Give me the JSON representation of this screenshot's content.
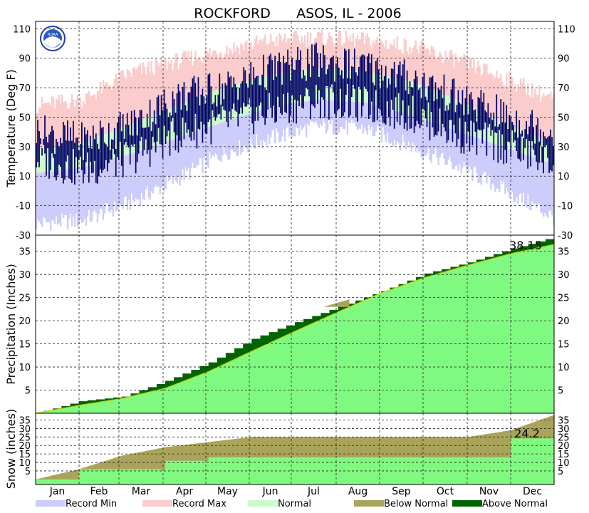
{
  "title": "ROCKFORD      ASOS, IL - 2006",
  "colors": {
    "record_min": "#cccdfb",
    "record_max": "#fbcccc",
    "normal": "#ccfacb",
    "observed": "#000066",
    "precip_normal_fill": "#80f980",
    "above_normal": "#006400",
    "below_normal": "#aaa45a",
    "normal_line": "#c8c800"
  },
  "months": [
    "Jan",
    "Feb",
    "Mar",
    "Apr",
    "May",
    "Jun",
    "Jul",
    "Aug",
    "Sep",
    "Oct",
    "Nov",
    "Dec"
  ],
  "legend": [
    {
      "label": "Record Min",
      "color": "#cccdfb"
    },
    {
      "label": "Record Max",
      "color": "#fbcccc"
    },
    {
      "label": "Normal",
      "color": "#ccfacb"
    },
    {
      "label": "Below Normal",
      "color": "#aaa45a"
    },
    {
      "label": "Above Normal",
      "color": "#006400"
    }
  ],
  "chart_data": [
    {
      "type": "area",
      "name": "temperature",
      "ylabel": "Temperature (Deg F)",
      "ylim": [
        -30,
        115
      ],
      "yticks": [
        -30,
        -10,
        10,
        30,
        50,
        70,
        90,
        110
      ],
      "grid": true,
      "x": [
        "Jan",
        "Feb",
        "Mar",
        "Apr",
        "May",
        "Jun",
        "Jul",
        "Aug",
        "Sep",
        "Oct",
        "Nov",
        "Dec"
      ],
      "series": [
        {
          "name": "Record Min",
          "values": [
            -22,
            -20,
            -8,
            8,
            26,
            36,
            44,
            42,
            30,
            16,
            0,
            -18
          ]
        },
        {
          "name": "Record Max",
          "values": [
            58,
            62,
            80,
            88,
            96,
            102,
            104,
            102,
            98,
            88,
            76,
            62
          ]
        },
        {
          "name": "Normal Low",
          "values": [
            12,
            16,
            25,
            36,
            47,
            57,
            62,
            60,
            51,
            40,
            29,
            18
          ]
        },
        {
          "name": "Normal High",
          "values": [
            28,
            33,
            45,
            58,
            70,
            79,
            83,
            81,
            74,
            61,
            45,
            32
          ]
        },
        {
          "name": "Observed Low",
          "values": [
            22,
            14,
            22,
            38,
            46,
            54,
            62,
            58,
            52,
            38,
            30,
            18
          ]
        },
        {
          "name": "Observed High",
          "values": [
            40,
            34,
            44,
            64,
            70,
            82,
            88,
            84,
            76,
            62,
            50,
            40
          ]
        }
      ]
    },
    {
      "type": "area",
      "name": "precipitation",
      "ylabel": "Precipitation (Inches)",
      "ylim": [
        0,
        38.5
      ],
      "yticks": [
        5,
        10,
        15,
        20,
        25,
        30,
        35
      ],
      "grid": true,
      "annotation": "38.15",
      "x": [
        "Jan 1",
        "Feb 1",
        "Mar 1",
        "Apr 1",
        "May 1",
        "Jun 1",
        "Jul 1",
        "Aug 1",
        "Sep 1",
        "Oct 1",
        "Nov 1",
        "Dec 1",
        "Dec 31"
      ],
      "series": [
        {
          "name": "Normal",
          "values": [
            0,
            1.7,
            3.2,
            5.4,
            9.0,
            13.4,
            17.7,
            21.9,
            26.0,
            29.3,
            32.0,
            34.5,
            36.5
          ]
        },
        {
          "name": "Observed",
          "values": [
            0,
            2.6,
            3.6,
            7.0,
            11.0,
            16.1,
            19.7,
            23.0,
            26.4,
            30.2,
            32.6,
            35.6,
            38.15
          ]
        }
      ]
    },
    {
      "type": "area",
      "name": "snow",
      "ylabel": "Snow (inches)",
      "ylim": [
        -3,
        39
      ],
      "yticks": [
        5,
        10,
        15,
        20,
        25,
        30,
        35
      ],
      "grid": true,
      "annotation": "24.2",
      "x": [
        "Jul 1",
        "Aug 1",
        "Sep 1",
        "Oct 1",
        "Nov 1",
        "Dec 1",
        "Jan 1",
        "Feb 1",
        "Mar 1",
        "Apr 1",
        "May 1",
        "Jun 1",
        "Jun 30"
      ],
      "series": [
        {
          "name": "Normal",
          "values": [
            0,
            6,
            14,
            19,
            22,
            25,
            25,
            25,
            25,
            25,
            25,
            29,
            38
          ]
        },
        {
          "name": "Observed",
          "values": [
            0,
            6,
            6,
            11,
            13,
            13,
            13,
            13,
            13,
            13,
            13,
            24.2,
            24.2
          ]
        }
      ]
    }
  ]
}
